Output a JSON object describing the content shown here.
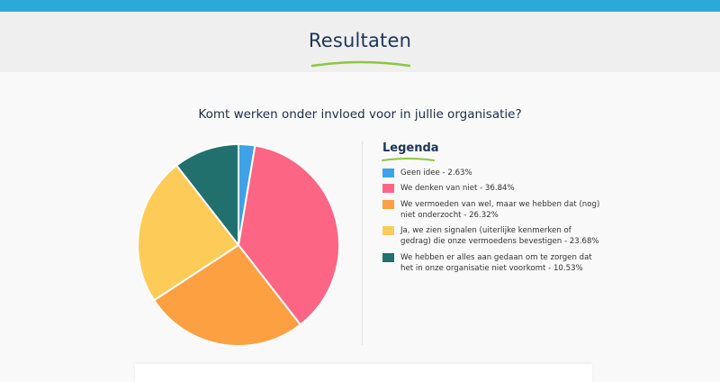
{
  "header": {
    "title": "Resultaten"
  },
  "question": "Komt werken onder invloed voor in jullie organisatie?",
  "legend": {
    "title": "Legenda"
  },
  "colors": {
    "topbar": "#2aaad9",
    "accent_underline": "#8cc63f"
  },
  "chart_data": {
    "type": "pie",
    "title": "",
    "slices": [
      {
        "label": "Geen idee - 2.63%",
        "value": 2.63,
        "color": "#3fa2e6"
      },
      {
        "label": "We denken van niet - 36.84%",
        "value": 36.84,
        "color": "#fd6584"
      },
      {
        "label": "We vermoeden van wel, maar we hebben dat (nog) niet onderzocht - 26.32%",
        "value": 26.32,
        "color": "#fca042"
      },
      {
        "label": "Ja, we zien signalen (uiterlijke kenmerken of gedrag) die onze vermoedens bevestigen - 23.68%",
        "value": 23.68,
        "color": "#fdcc58"
      },
      {
        "label": "We hebben er alles aan gedaan om te zorgen dat het in onze organisatie niet voorkomt - 10.53%",
        "value": 10.53,
        "color": "#21706e"
      }
    ]
  }
}
